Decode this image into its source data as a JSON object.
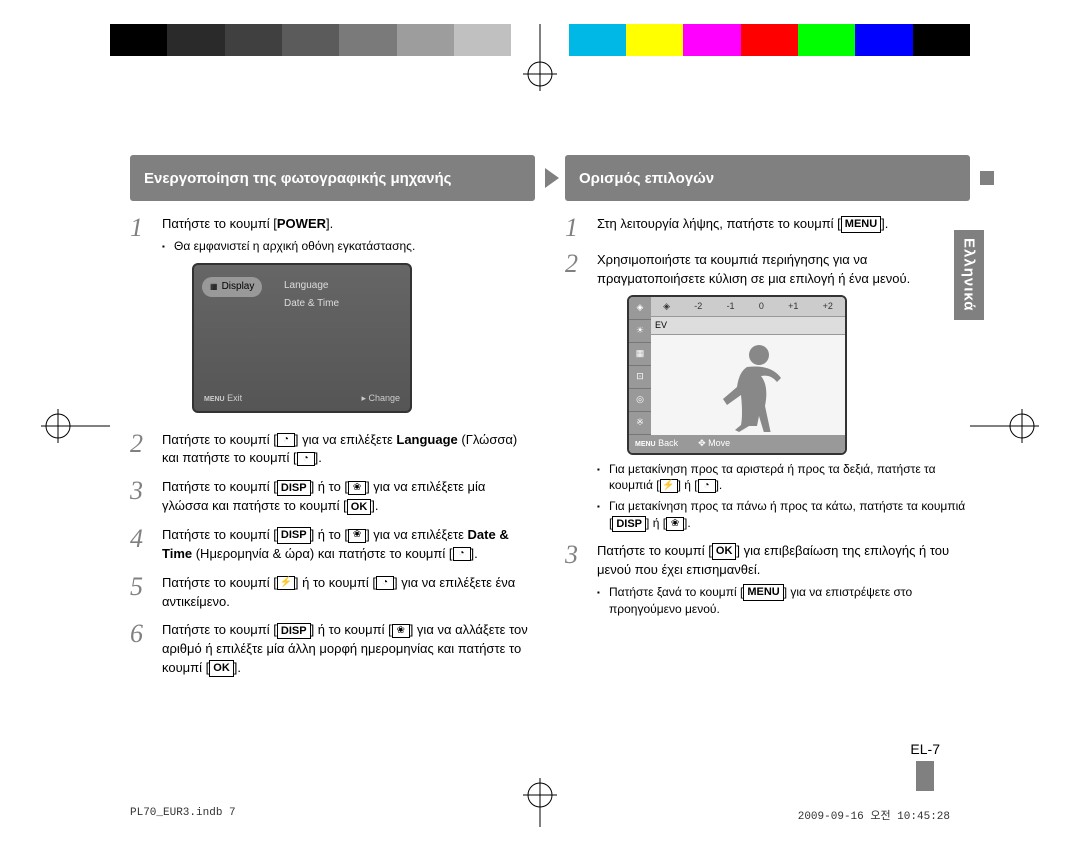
{
  "colorStrip": [
    "#000000",
    "#2a2a2a",
    "#404040",
    "#5b5b5b",
    "#7a7a7a",
    "#9d9d9d",
    "#c0c0c0",
    "#ffffff",
    "#00b8e6",
    "#ffff00",
    "#ff00ff",
    "#ff0000",
    "#00ff00",
    "#0000ff",
    "#000000"
  ],
  "left": {
    "header": "Ενεργοποίηση της φωτογραφικής μηχανής",
    "steps": [
      {
        "num": "1",
        "html": "Πατήστε το κουμπί [<b>POWER</b>].",
        "sub": [
          "Θα εμφανιστεί η αρχική οθόνη εγκατάστασης."
        ]
      },
      {
        "num": "2",
        "html": "Πατήστε το κουμπί [{timer}] για να επιλέξετε <b>Language</b> (Γλώσσα) και πατήστε το κουμπί [{timer}]."
      },
      {
        "num": "3",
        "html": "Πατήστε το κουμπί [{disp}] ή το [{macro}] για να επιλέξετε μία γλώσσα και πατήστε το κουμπί [{ok}]."
      },
      {
        "num": "4",
        "html": "Πατήστε το κουμπί [{disp}] ή το [{macro}] για να επιλέξετε <b>Date & Time</b> (Ημερομηνία & ώρα) και πατήστε το κουμπί [{timer}]."
      },
      {
        "num": "5",
        "html": "Πατήστε το κουμπί [{flash}] ή το κουμπί [{timer}] για να επιλέξετε ένα αντικείμενο."
      },
      {
        "num": "6",
        "html": "Πατήστε το κουμπί [{disp}] ή το κουμπί [{macro}] για να αλλάξετε τον αριθμό ή επιλέξτε μία άλλη μορφή ημερομηνίας και πατήστε το κουμπί [{ok}]."
      }
    ],
    "screen": {
      "tab": "Display",
      "opt1": "Language",
      "opt2": "Date & Time",
      "exit": "Exit",
      "change": "Change"
    }
  },
  "right": {
    "header": "Ορισμός επιλογών",
    "steps": [
      {
        "num": "1",
        "html": "Στη λειτουργία λήψης, πατήστε το κουμπί [{menu}]."
      },
      {
        "num": "2",
        "html": "Χρησιμοποιήστε τα κουμπιά περιήγησης για να πραγματοποιήσετε κύλιση σε μια επιλογή ή ένα μενού."
      },
      {
        "num": "3",
        "html": "Πατήστε το κουμπί [{ok}] για επιβεβαίωση της επιλογής ή του μενού που έχει επισημανθεί.",
        "sub": [
          "Πατήστε ξανά το κουμπί [{menu}] για να επιστρέψετε στο προηγούμενο μενού."
        ]
      }
    ],
    "bullets": [
      "Για μετακίνηση προς τα αριστερά ή προς τα δεξιά, πατήστε τα κουμπιά [{flash}] ή [{timer}].",
      "Για μετακίνηση προς τα πάνω ή προς τα κάτω, πατήστε τα κουμπιά [{disp}] ή [{macro}]."
    ],
    "screen": {
      "ticks": [
        "-2",
        "-1",
        "0",
        "+1",
        "+2"
      ],
      "ev": "EV",
      "back": "Back",
      "move": "Move"
    }
  },
  "sideTab": "Ελληνικά",
  "pageNum": "EL-7",
  "footerLeft": "PL70_EUR3.indb   7",
  "footerRight": "2009-09-16   오전 10:45:28",
  "icons": {
    "disp": "DISP",
    "ok": "OK",
    "menu": "MENU",
    "macro": "❀",
    "flash": "⚡",
    "timer": "◔"
  }
}
